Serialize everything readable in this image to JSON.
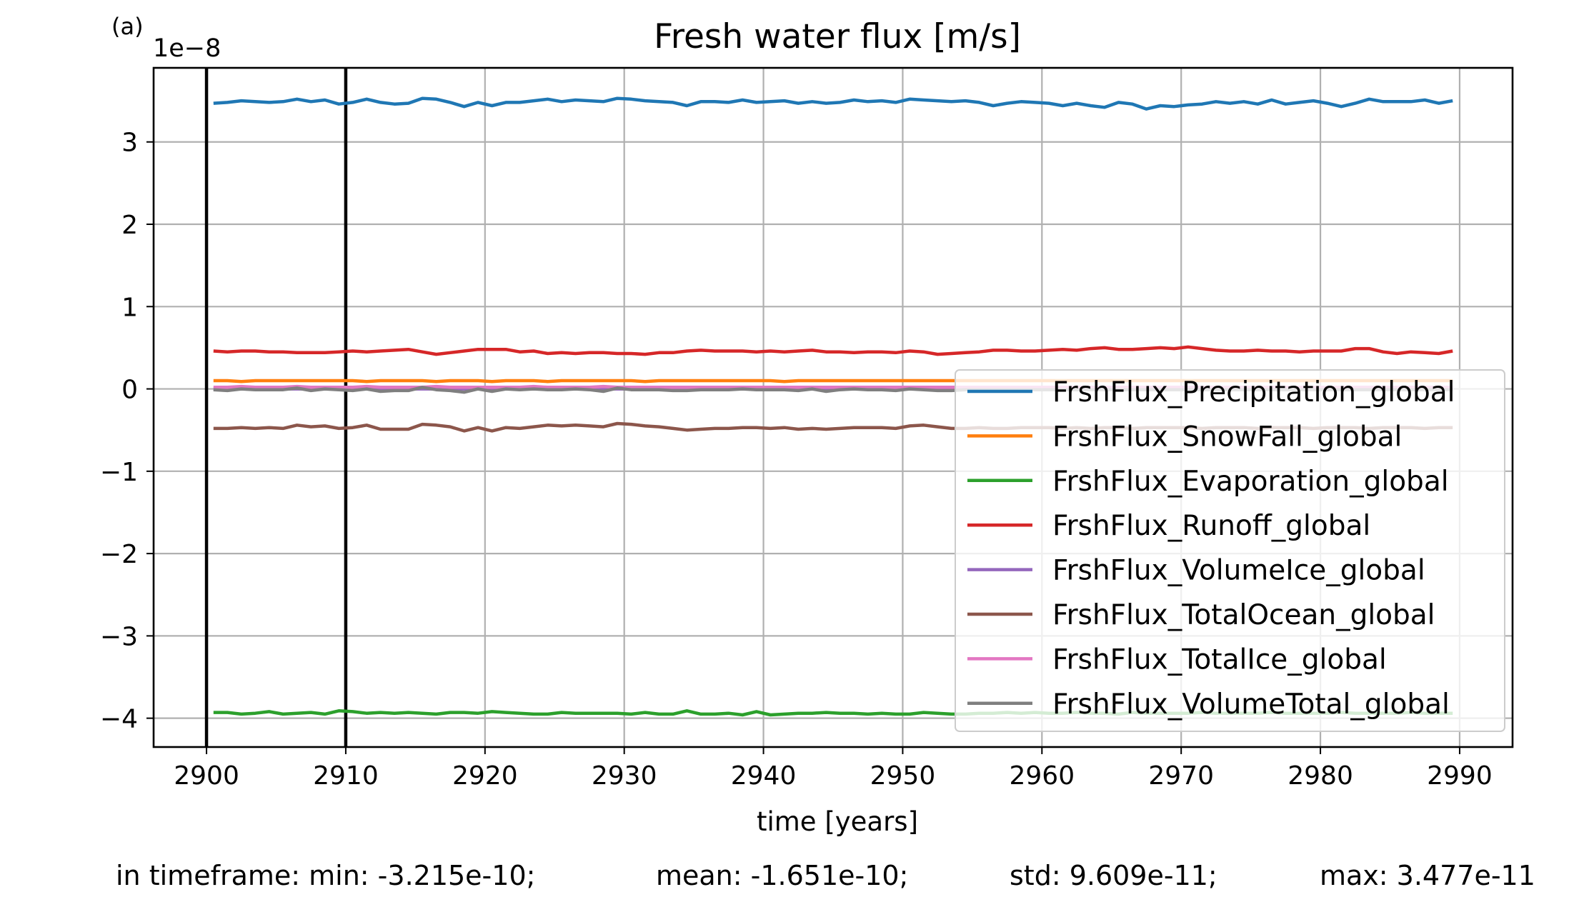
{
  "panel_label": "(a)",
  "offset_text": "1e−8",
  "stats": {
    "min": "in timeframe: min: -3.215e-10;",
    "mean": "mean: -1.651e-10;",
    "std": "std: 9.609e-11;",
    "max": "max: 3.477e-11"
  },
  "chart_data": {
    "type": "line",
    "title": "Fresh water flux [m/s]",
    "xlabel": "time [years]",
    "ylabel": "",
    "y_scale_factor": "1e-8",
    "xlim": [
      2896.2,
      2993.8
    ],
    "ylim": [
      -4.35,
      3.9
    ],
    "x_ticks": [
      2900,
      2910,
      2920,
      2930,
      2940,
      2950,
      2960,
      2970,
      2980,
      2990
    ],
    "y_ticks": [
      -4,
      -3,
      -2,
      -1,
      0,
      1,
      2,
      3
    ],
    "y_tick_labels": [
      "−4",
      "−3",
      "−2",
      "−1",
      "0",
      "1",
      "2",
      "3"
    ],
    "grid": true,
    "legend_position": "lower right",
    "vertical_lines": [
      2900,
      2910
    ],
    "vertical_line_color": "#000000",
    "x": [
      2900.5,
      2901.5,
      2902.5,
      2903.5,
      2904.5,
      2905.5,
      2906.5,
      2907.5,
      2908.5,
      2909.5,
      2910.5,
      2911.5,
      2912.5,
      2913.5,
      2914.5,
      2915.5,
      2916.5,
      2917.5,
      2918.5,
      2919.5,
      2920.5,
      2921.5,
      2922.5,
      2923.5,
      2924.5,
      2925.5,
      2926.5,
      2927.5,
      2928.5,
      2929.5,
      2930.5,
      2931.5,
      2932.5,
      2933.5,
      2934.5,
      2935.5,
      2936.5,
      2937.5,
      2938.5,
      2939.5,
      2940.5,
      2941.5,
      2942.5,
      2943.5,
      2944.5,
      2945.5,
      2946.5,
      2947.5,
      2948.5,
      2949.5,
      2950.5,
      2951.5,
      2952.5,
      2953.5,
      2954.5,
      2955.5,
      2956.5,
      2957.5,
      2958.5,
      2959.5,
      2960.5,
      2961.5,
      2962.5,
      2963.5,
      2964.5,
      2965.5,
      2966.5,
      2967.5,
      2968.5,
      2969.5,
      2970.5,
      2971.5,
      2972.5,
      2973.5,
      2974.5,
      2975.5,
      2976.5,
      2977.5,
      2978.5,
      2979.5,
      2980.5,
      2981.5,
      2982.5,
      2983.5,
      2984.5,
      2985.5,
      2986.5,
      2987.5,
      2988.5,
      2989.5
    ],
    "series": [
      {
        "name": "FrshFlux_Precipitation_global",
        "color": "#1f77b4",
        "values": [
          3.47,
          3.48,
          3.5,
          3.49,
          3.48,
          3.49,
          3.52,
          3.49,
          3.51,
          3.46,
          3.48,
          3.52,
          3.48,
          3.46,
          3.47,
          3.53,
          3.52,
          3.48,
          3.43,
          3.48,
          3.44,
          3.48,
          3.48,
          3.5,
          3.52,
          3.49,
          3.51,
          3.5,
          3.49,
          3.53,
          3.52,
          3.5,
          3.49,
          3.48,
          3.44,
          3.49,
          3.49,
          3.48,
          3.51,
          3.48,
          3.49,
          3.5,
          3.47,
          3.49,
          3.47,
          3.48,
          3.51,
          3.49,
          3.5,
          3.48,
          3.52,
          3.51,
          3.5,
          3.49,
          3.5,
          3.48,
          3.44,
          3.47,
          3.49,
          3.48,
          3.47,
          3.44,
          3.47,
          3.44,
          3.42,
          3.48,
          3.46,
          3.4,
          3.44,
          3.43,
          3.45,
          3.46,
          3.49,
          3.47,
          3.49,
          3.46,
          3.51,
          3.46,
          3.48,
          3.5,
          3.47,
          3.43,
          3.47,
          3.52,
          3.49,
          3.49,
          3.49,
          3.51,
          3.47,
          3.5
        ]
      },
      {
        "name": "FrshFlux_SnowFall_global",
        "color": "#ff7f0e",
        "values": [
          0.1,
          0.1,
          0.09,
          0.1,
          0.1,
          0.1,
          0.1,
          0.1,
          0.1,
          0.1,
          0.1,
          0.09,
          0.1,
          0.1,
          0.1,
          0.1,
          0.09,
          0.1,
          0.1,
          0.1,
          0.09,
          0.1,
          0.1,
          0.1,
          0.09,
          0.1,
          0.1,
          0.1,
          0.1,
          0.1,
          0.1,
          0.09,
          0.1,
          0.1,
          0.1,
          0.1,
          0.1,
          0.1,
          0.1,
          0.1,
          0.1,
          0.09,
          0.1,
          0.1,
          0.1,
          0.1,
          0.1,
          0.1,
          0.1,
          0.1,
          0.1,
          0.1,
          0.1,
          0.1,
          0.1,
          0.1,
          0.1,
          0.1,
          0.1,
          0.1,
          0.1,
          0.1,
          0.1,
          0.1,
          0.1,
          0.1,
          0.1,
          0.1,
          0.1,
          0.1,
          0.1,
          0.1,
          0.1,
          0.1,
          0.1,
          0.1,
          0.1,
          0.1,
          0.1,
          0.1,
          0.1,
          0.1,
          0.1,
          0.1,
          0.1,
          0.1,
          0.1,
          0.1,
          0.1,
          0.1
        ]
      },
      {
        "name": "FrshFlux_Evaporation_global",
        "color": "#2ca02c",
        "values": [
          -3.93,
          -3.93,
          -3.95,
          -3.94,
          -3.92,
          -3.95,
          -3.94,
          -3.93,
          -3.95,
          -3.91,
          -3.92,
          -3.94,
          -3.93,
          -3.94,
          -3.93,
          -3.94,
          -3.95,
          -3.93,
          -3.93,
          -3.94,
          -3.92,
          -3.93,
          -3.94,
          -3.95,
          -3.95,
          -3.93,
          -3.94,
          -3.94,
          -3.94,
          -3.94,
          -3.95,
          -3.93,
          -3.95,
          -3.95,
          -3.91,
          -3.95,
          -3.95,
          -3.94,
          -3.96,
          -3.92,
          -3.96,
          -3.95,
          -3.94,
          -3.94,
          -3.93,
          -3.94,
          -3.94,
          -3.95,
          -3.94,
          -3.95,
          -3.95,
          -3.93,
          -3.94,
          -3.95,
          -3.95,
          -3.94,
          -3.94,
          -3.93,
          -3.94,
          -3.93,
          -3.94,
          -3.94,
          -3.93,
          -3.94,
          -3.94,
          -3.95,
          -3.93,
          -3.94,
          -3.94,
          -3.94,
          -3.94,
          -3.93,
          -3.94,
          -3.94,
          -3.94,
          -3.94,
          -3.93,
          -3.94,
          -3.94,
          -3.94,
          -3.94,
          -3.93,
          -3.94,
          -3.94,
          -3.94,
          -3.94,
          -3.93,
          -3.94,
          -3.94,
          -3.94
        ]
      },
      {
        "name": "FrshFlux_Runoff_global",
        "color": "#d62728",
        "values": [
          0.46,
          0.45,
          0.46,
          0.46,
          0.45,
          0.45,
          0.44,
          0.44,
          0.44,
          0.45,
          0.46,
          0.45,
          0.46,
          0.47,
          0.48,
          0.45,
          0.42,
          0.44,
          0.46,
          0.48,
          0.48,
          0.48,
          0.45,
          0.46,
          0.43,
          0.44,
          0.43,
          0.44,
          0.44,
          0.43,
          0.43,
          0.42,
          0.44,
          0.44,
          0.46,
          0.47,
          0.46,
          0.46,
          0.46,
          0.45,
          0.46,
          0.45,
          0.46,
          0.47,
          0.45,
          0.45,
          0.44,
          0.45,
          0.45,
          0.44,
          0.46,
          0.45,
          0.42,
          0.43,
          0.44,
          0.45,
          0.47,
          0.47,
          0.46,
          0.46,
          0.47,
          0.48,
          0.47,
          0.49,
          0.5,
          0.48,
          0.48,
          0.49,
          0.5,
          0.49,
          0.51,
          0.49,
          0.47,
          0.46,
          0.46,
          0.47,
          0.46,
          0.46,
          0.45,
          0.46,
          0.46,
          0.46,
          0.49,
          0.49,
          0.45,
          0.43,
          0.45,
          0.44,
          0.43,
          0.46
        ]
      },
      {
        "name": "FrshFlux_VolumeIce_global",
        "color": "#9467bd",
        "values": [
          0.0,
          0.0,
          0.0,
          0.0,
          0.0,
          0.0,
          0.0,
          0.0,
          0.0,
          0.0,
          0.0,
          0.0,
          0.0,
          0.0,
          0.0,
          0.0,
          0.0,
          0.0,
          0.0,
          0.0,
          0.0,
          0.0,
          0.0,
          0.0,
          0.0,
          0.0,
          0.0,
          0.0,
          0.0,
          0.0,
          0.0,
          0.0,
          0.0,
          0.0,
          0.0,
          0.0,
          0.0,
          0.0,
          0.0,
          0.0,
          0.0,
          0.0,
          0.0,
          0.0,
          0.0,
          0.0,
          0.0,
          0.0,
          0.0,
          0.0,
          0.0,
          0.0,
          0.0,
          0.0,
          0.0,
          0.0,
          0.0,
          0.0,
          0.0,
          0.0,
          0.0,
          0.0,
          0.0,
          0.0,
          0.0,
          0.0,
          0.0,
          0.0,
          0.0,
          0.0,
          0.0,
          0.0,
          0.0,
          0.0,
          0.0,
          0.0,
          0.0,
          0.0,
          0.0,
          0.0,
          0.0,
          0.0,
          0.0,
          0.0,
          0.0,
          0.0,
          0.0,
          0.0,
          0.0,
          0.0
        ]
      },
      {
        "name": "FrshFlux_TotalOcean_global",
        "color": "#8c564b",
        "values": [
          -0.48,
          -0.48,
          -0.47,
          -0.48,
          -0.47,
          -0.48,
          -0.44,
          -0.46,
          -0.45,
          -0.48,
          -0.47,
          -0.44,
          -0.49,
          -0.49,
          -0.49,
          -0.43,
          -0.44,
          -0.46,
          -0.51,
          -0.47,
          -0.51,
          -0.47,
          -0.48,
          -0.46,
          -0.44,
          -0.45,
          -0.44,
          -0.45,
          -0.46,
          -0.42,
          -0.43,
          -0.45,
          -0.46,
          -0.48,
          -0.5,
          -0.49,
          -0.48,
          -0.48,
          -0.47,
          -0.47,
          -0.48,
          -0.47,
          -0.49,
          -0.48,
          -0.49,
          -0.48,
          -0.47,
          -0.47,
          -0.47,
          -0.48,
          -0.45,
          -0.44,
          -0.46,
          -0.48,
          -0.48,
          -0.47,
          -0.48,
          -0.48,
          -0.47,
          -0.47,
          -0.47,
          -0.48,
          -0.47,
          -0.48,
          -0.47,
          -0.47,
          -0.48,
          -0.47,
          -0.47,
          -0.47,
          -0.47,
          -0.48,
          -0.47,
          -0.47,
          -0.47,
          -0.48,
          -0.47,
          -0.47,
          -0.47,
          -0.48,
          -0.47,
          -0.47,
          -0.47,
          -0.48,
          -0.47,
          -0.47,
          -0.47,
          -0.48,
          -0.47,
          -0.47
        ]
      },
      {
        "name": "FrshFlux_TotalIce_global",
        "color": "#e377c2",
        "values": [
          0.02,
          0.02,
          0.03,
          0.02,
          0.02,
          0.02,
          0.03,
          0.02,
          0.02,
          0.02,
          0.02,
          0.03,
          0.02,
          0.02,
          0.02,
          0.02,
          0.03,
          0.02,
          0.02,
          0.02,
          0.02,
          0.02,
          0.02,
          0.03,
          0.02,
          0.02,
          0.02,
          0.02,
          0.03,
          0.02,
          0.02,
          0.02,
          0.02,
          0.02,
          0.02,
          0.02,
          0.02,
          0.02,
          0.02,
          0.02,
          0.02,
          0.02,
          0.02,
          0.02,
          0.02,
          0.02,
          0.02,
          0.02,
          0.02,
          0.02,
          0.02,
          0.02,
          0.02,
          0.02,
          0.02,
          0.02,
          0.02,
          0.02,
          0.02,
          0.02,
          0.02,
          0.02,
          0.02,
          0.02,
          0.02,
          0.02,
          0.02,
          0.02,
          0.02,
          0.02,
          0.02,
          0.02,
          0.02,
          0.02,
          0.02,
          0.02,
          0.02,
          0.02,
          0.02,
          0.02,
          0.02,
          0.02,
          0.02,
          0.02,
          0.02,
          0.02,
          0.02,
          0.02,
          0.02,
          0.02
        ]
      },
      {
        "name": "FrshFlux_VolumeTotal_global",
        "color": "#7f7f7f",
        "values": [
          -0.01,
          -0.02,
          0.0,
          -0.01,
          -0.01,
          -0.01,
          0.01,
          -0.02,
          0.0,
          -0.01,
          -0.02,
          0.0,
          -0.03,
          -0.02,
          -0.02,
          0.02,
          -0.01,
          -0.02,
          -0.04,
          0.0,
          -0.03,
          0.0,
          -0.01,
          0.0,
          -0.01,
          -0.01,
          0.0,
          -0.01,
          -0.03,
          0.01,
          -0.01,
          -0.01,
          -0.01,
          -0.02,
          -0.02,
          -0.01,
          -0.01,
          -0.01,
          0.0,
          -0.01,
          -0.01,
          -0.01,
          -0.02,
          0.0,
          -0.03,
          -0.01,
          0.0,
          -0.01,
          -0.01,
          -0.02,
          0.0,
          -0.01,
          -0.02,
          -0.02,
          -0.01,
          -0.01,
          -0.01,
          -0.01,
          -0.01,
          -0.01,
          -0.01,
          -0.01,
          -0.01,
          -0.01,
          -0.01,
          -0.01,
          -0.01,
          -0.01,
          -0.01,
          -0.01,
          -0.01,
          -0.01,
          -0.01,
          -0.01,
          -0.01,
          -0.01,
          -0.01,
          -0.01,
          -0.01,
          -0.01,
          -0.01,
          -0.01,
          -0.01,
          -0.01,
          -0.01,
          -0.01,
          -0.01,
          -0.01,
          -0.01,
          -0.01
        ]
      }
    ]
  }
}
